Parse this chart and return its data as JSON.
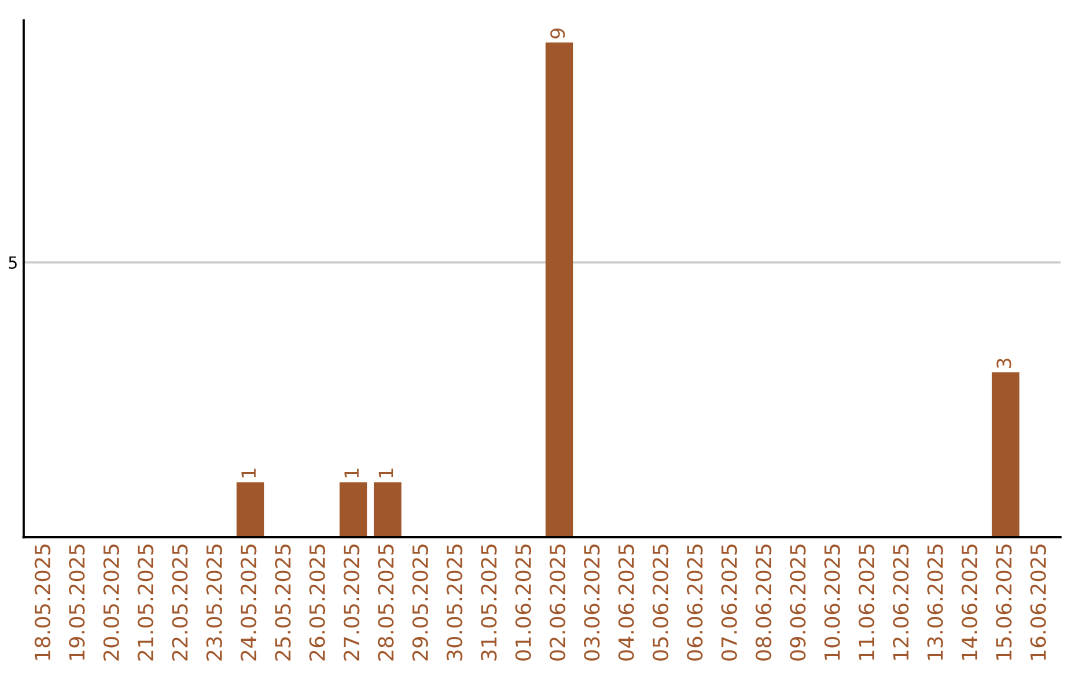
{
  "chart_data": {
    "type": "bar",
    "categories": [
      "18.05.2025",
      "19.05.2025",
      "20.05.2025",
      "21.05.2025",
      "22.05.2025",
      "23.05.2025",
      "24.05.2025",
      "25.05.2025",
      "26.05.2025",
      "27.05.2025",
      "28.05.2025",
      "29.05.2025",
      "30.05.2025",
      "31.05.2025",
      "01.06.2025",
      "02.06.2025",
      "03.06.2025",
      "04.06.2025",
      "05.06.2025",
      "06.06.2025",
      "07.06.2025",
      "08.06.2025",
      "09.06.2025",
      "10.06.2025",
      "11.06.2025",
      "12.06.2025",
      "13.06.2025",
      "14.06.2025",
      "15.06.2025",
      "16.06.2025"
    ],
    "values": [
      0,
      0,
      0,
      0,
      0,
      0,
      1,
      0,
      0,
      1,
      1,
      0,
      0,
      0,
      0,
      9,
      0,
      0,
      0,
      0,
      0,
      0,
      0,
      0,
      0,
      0,
      0,
      0,
      3,
      0
    ],
    "value_labels": [
      null,
      null,
      null,
      null,
      null,
      null,
      "1",
      null,
      null,
      "1",
      "1",
      null,
      null,
      null,
      null,
      "9",
      null,
      null,
      null,
      null,
      null,
      null,
      null,
      null,
      null,
      null,
      null,
      null,
      "3",
      null
    ],
    "color": "#a0572b",
    "ylim": [
      0,
      9.4
    ],
    "yticks": [
      5
    ],
    "grid": "y"
  }
}
